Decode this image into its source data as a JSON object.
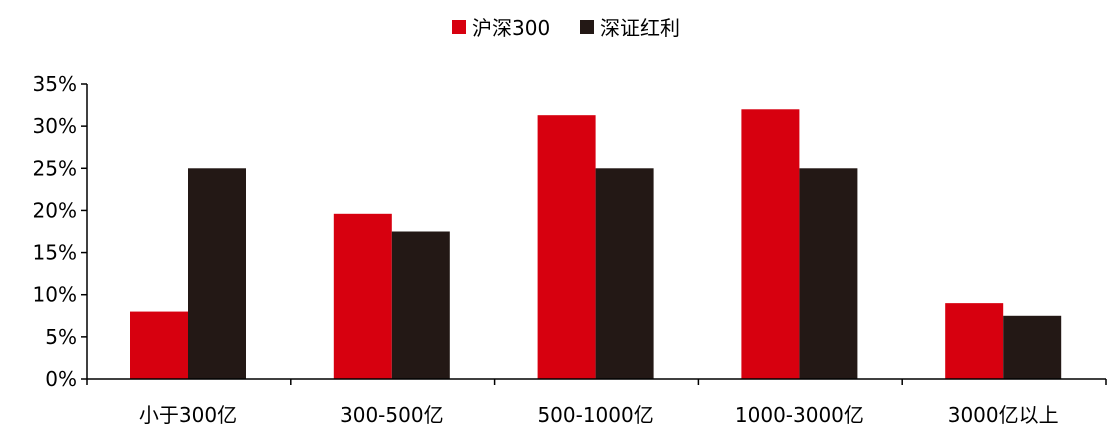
{
  "chart_data": {
    "type": "bar",
    "categories": [
      "小于300亿",
      "300-500亿",
      "500-1000亿",
      "1000-3000亿",
      "3000亿以上"
    ],
    "series": [
      {
        "name": "沪深300",
        "color": "#d7000f",
        "values": [
          8.0,
          19.6,
          31.3,
          32.0,
          9.0
        ]
      },
      {
        "name": "深证红利",
        "color": "#231815",
        "values": [
          25.0,
          17.5,
          25.0,
          25.0,
          7.5
        ]
      }
    ],
    "title": "",
    "xlabel": "",
    "ylabel": "",
    "ylim": [
      0,
      35
    ],
    "yticks": [
      0,
      5,
      10,
      15,
      20,
      25,
      30,
      35
    ],
    "ytick_labels": [
      "0%",
      "5%",
      "10%",
      "15%",
      "20%",
      "25%",
      "30%",
      "35%"
    ],
    "grid": false,
    "legend_position": "top-center"
  }
}
